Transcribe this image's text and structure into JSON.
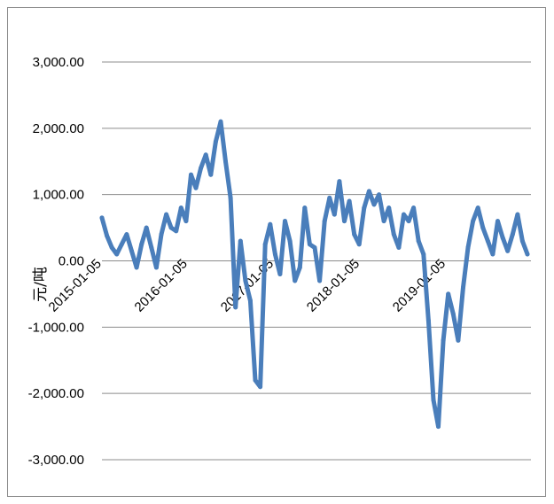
{
  "chart_data": {
    "type": "line",
    "ylabel": "元/吨",
    "xlabel": "",
    "title": "",
    "ylim": [
      -3000,
      3000
    ],
    "y_ticks": [
      3000,
      2000,
      1000,
      0,
      -1000,
      -2000,
      -3000
    ],
    "y_tick_labels": [
      "3,000.00",
      "2,000.00",
      "1,000.00",
      "0.00",
      "-1,000.00",
      "-2,000.00",
      "-3,000.00"
    ],
    "x_tick_labels": [
      "2015-01-05",
      "2016-01-05",
      "2017-01-05",
      "2018-01-05",
      "2019-01-05"
    ],
    "grid": "horizontal",
    "line_color": "#4a7ebb",
    "series": [
      {
        "x": [
          "2015-01-05",
          "2015-01-26",
          "2015-02-16",
          "2015-03-09",
          "2015-03-30",
          "2015-04-20",
          "2015-05-11",
          "2015-06-01",
          "2015-06-22",
          "2015-07-13",
          "2015-08-03",
          "2015-08-24",
          "2015-09-14",
          "2015-10-05",
          "2015-10-26",
          "2015-11-16",
          "2015-12-07",
          "2015-12-28",
          "2016-01-18",
          "2016-02-08",
          "2016-02-29",
          "2016-03-21",
          "2016-04-11",
          "2016-05-02",
          "2016-05-23",
          "2016-06-13",
          "2016-07-04",
          "2016-07-25",
          "2016-08-15",
          "2016-09-05",
          "2016-09-26",
          "2016-10-17",
          "2016-11-07",
          "2016-11-28",
          "2016-12-19",
          "2017-01-09",
          "2017-01-30",
          "2017-02-20",
          "2017-03-13",
          "2017-04-03",
          "2017-04-24",
          "2017-05-15",
          "2017-06-05",
          "2017-06-26",
          "2017-07-17",
          "2017-08-07",
          "2017-08-28",
          "2017-09-18",
          "2017-10-09",
          "2017-10-30",
          "2017-11-20",
          "2017-12-11",
          "2018-01-01",
          "2018-01-22",
          "2018-02-12",
          "2018-03-05",
          "2018-03-26",
          "2018-04-16",
          "2018-05-07",
          "2018-05-28",
          "2018-06-18",
          "2018-07-09",
          "2018-07-30",
          "2018-08-20",
          "2018-09-10",
          "2018-10-01",
          "2018-10-22",
          "2018-11-12",
          "2018-12-03",
          "2018-12-24",
          "2019-01-14",
          "2019-02-04",
          "2019-02-25",
          "2019-03-18",
          "2019-04-08",
          "2019-04-29",
          "2019-05-20",
          "2019-06-10",
          "2019-07-01",
          "2019-07-22",
          "2019-08-12",
          "2019-09-02",
          "2019-09-23",
          "2019-10-14",
          "2019-11-04",
          "2019-11-25",
          "2019-12-16"
        ],
        "values": [
          650,
          380,
          200,
          100,
          250,
          400,
          150,
          -100,
          250,
          500,
          200,
          -100,
          400,
          700,
          500,
          450,
          800,
          600,
          1300,
          1100,
          1400,
          1600,
          1300,
          1800,
          2100,
          1500,
          950,
          -700,
          300,
          -300,
          -600,
          -1800,
          -1900,
          250,
          550,
          100,
          -200,
          600,
          300,
          -300,
          -100,
          800,
          250,
          200,
          -300,
          600,
          950,
          700,
          1200,
          600,
          900,
          400,
          250,
          800,
          1050,
          850,
          1000,
          600,
          800,
          400,
          200,
          700,
          600,
          800,
          300,
          100,
          -900,
          -2100,
          -2500,
          -1200,
          -500,
          -800,
          -1200,
          -400,
          200,
          600,
          800,
          500,
          300,
          100,
          600,
          350,
          150,
          400,
          700,
          300,
          100
        ]
      }
    ]
  }
}
